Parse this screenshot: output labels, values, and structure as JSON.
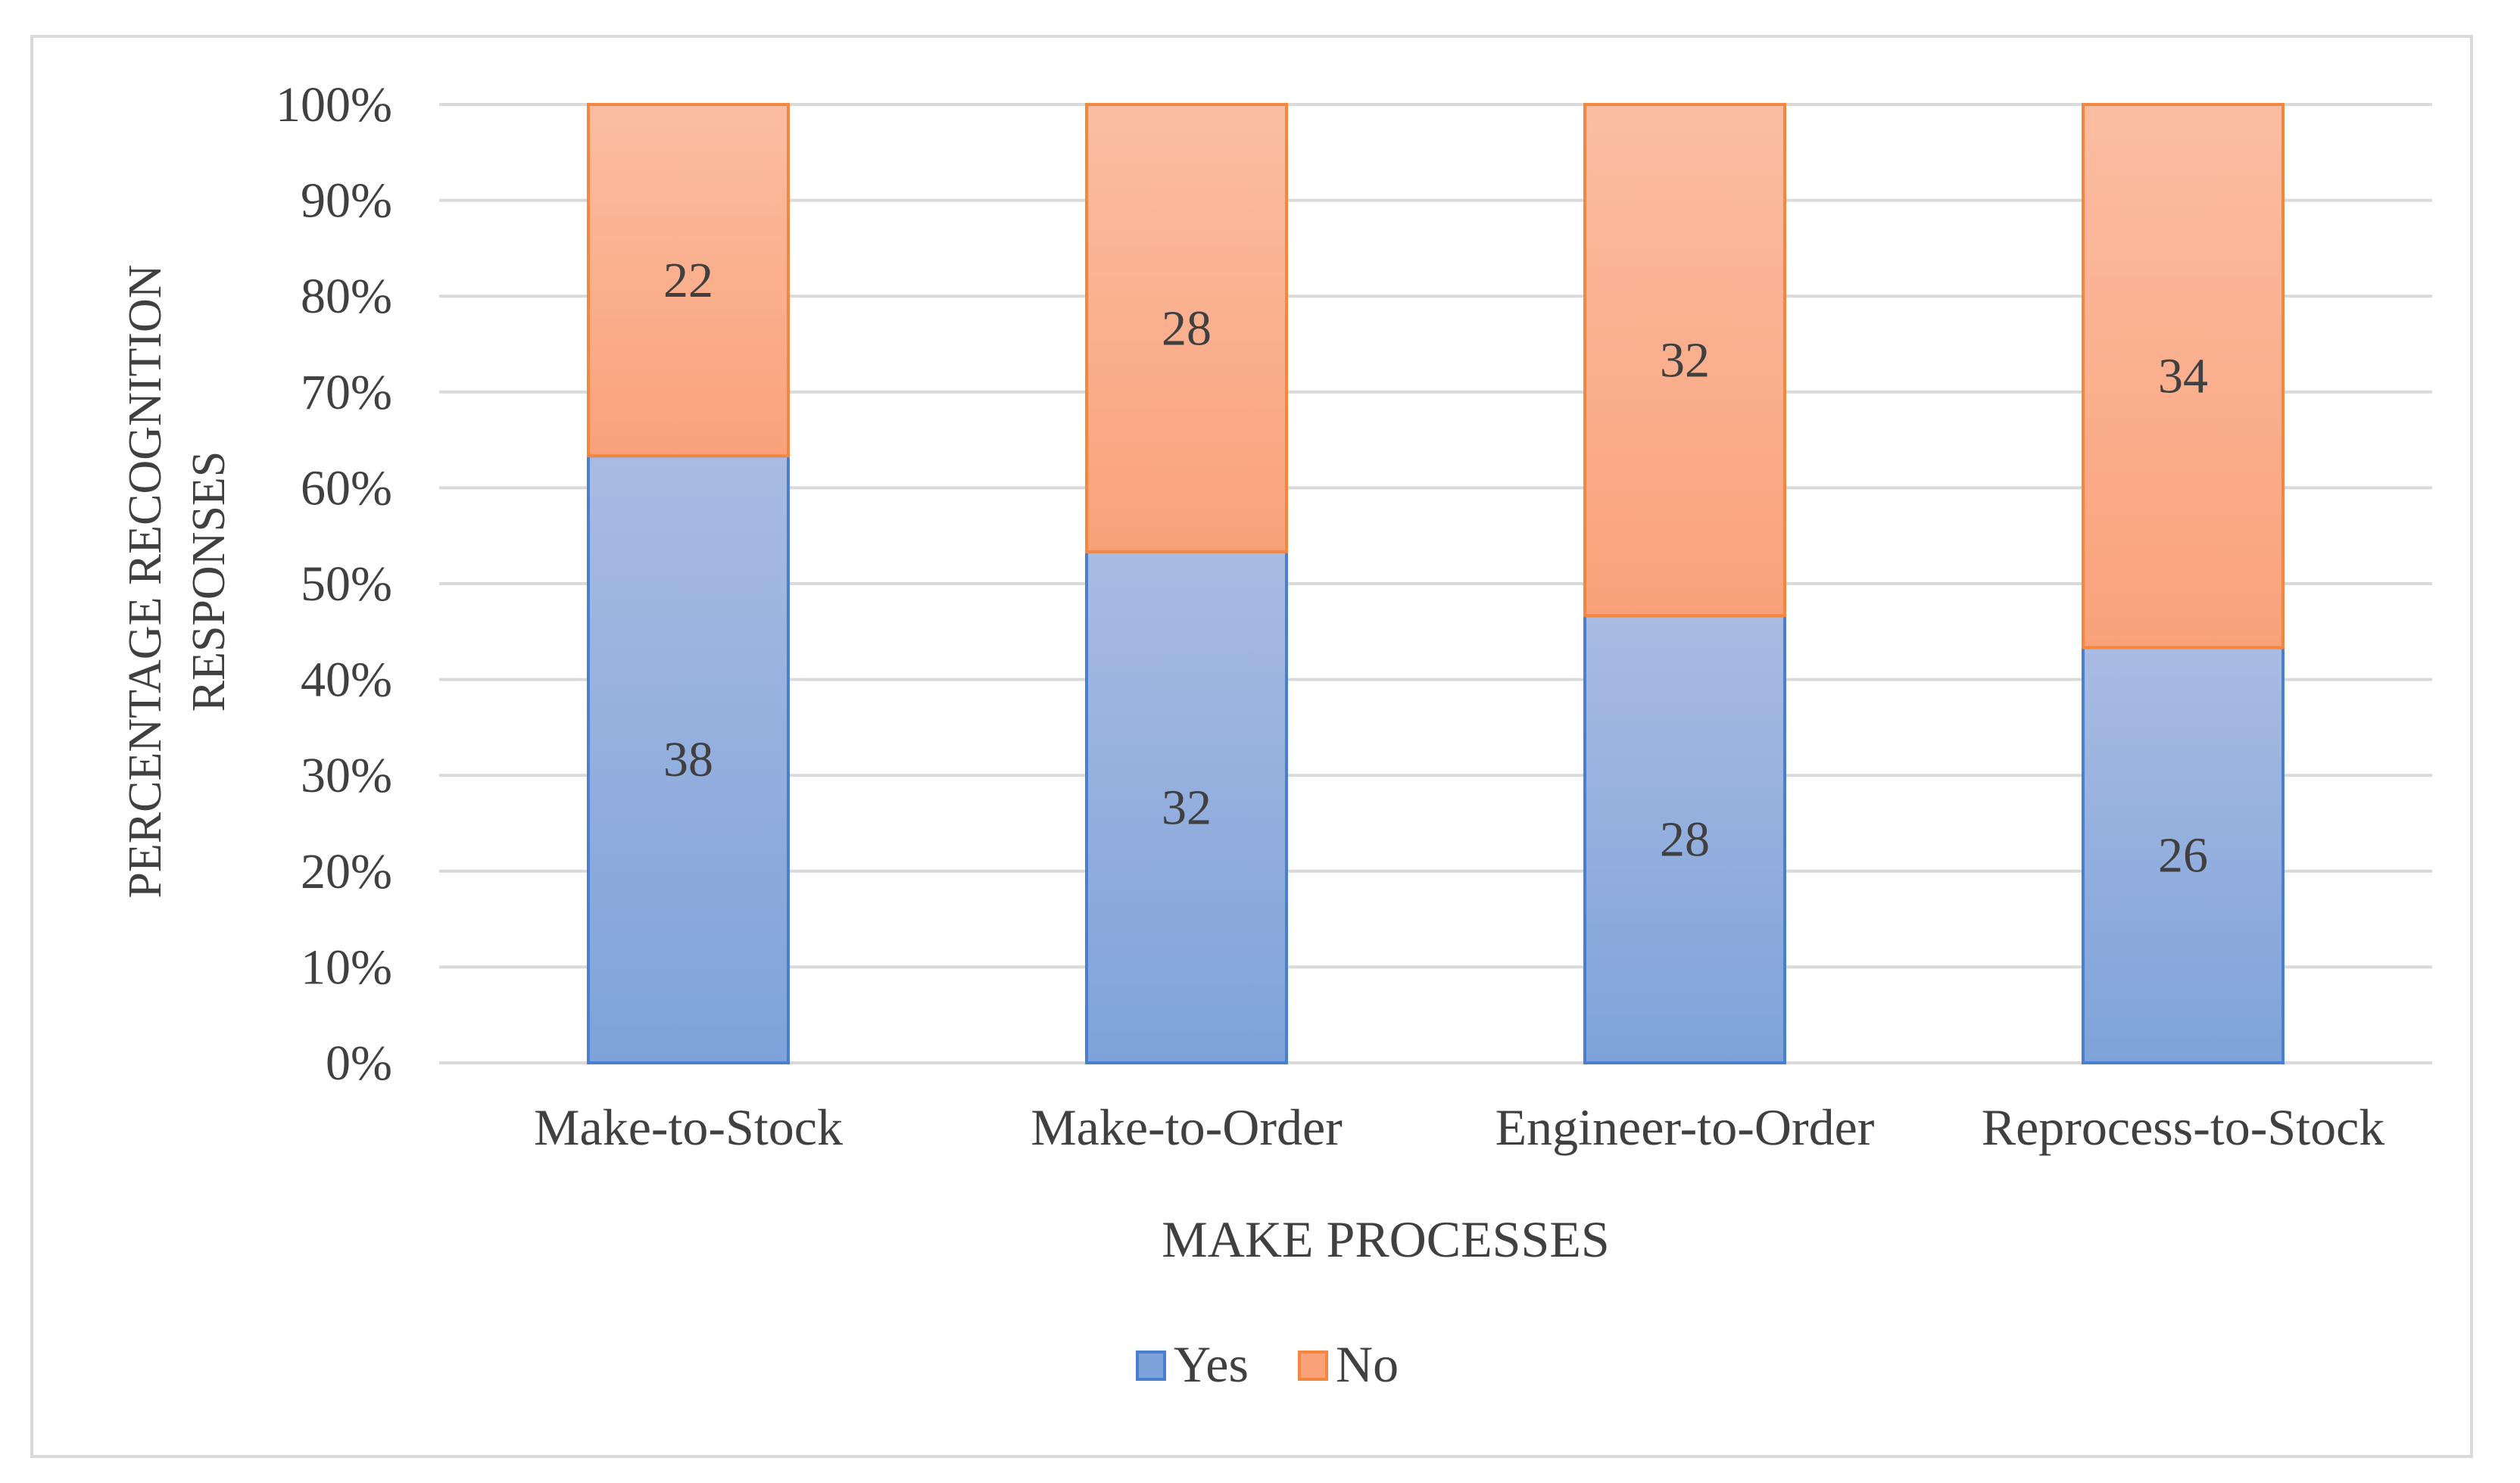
{
  "chart_data": {
    "type": "bar",
    "stacked": true,
    "percent_stacked": true,
    "title": "",
    "xlabel": "MAKE PROCESSES",
    "ylabel_lines": [
      "PERCENTAGE RECOGNITION",
      "RESPONSES"
    ],
    "ylim": [
      0,
      100
    ],
    "yticks": [
      "0%",
      "10%",
      "20%",
      "30%",
      "40%",
      "50%",
      "60%",
      "70%",
      "80%",
      "90%",
      "100%"
    ],
    "categories": [
      "Make-to-Stock",
      "Make-to-Order",
      "Engineer-to-Order",
      "Reprocess-to-Stock"
    ],
    "series": [
      {
        "name": "Yes",
        "values": [
          38,
          32,
          28,
          26
        ],
        "color": "#7ea3da",
        "color_top": "#a9bbe2",
        "edge": "#4a7fd0"
      },
      {
        "name": "No",
        "values": [
          22,
          28,
          32,
          34
        ],
        "color": "#f9a27a",
        "color_top": "#fbbda2",
        "edge": "#f4873f"
      }
    ],
    "grid": true,
    "legend": "bottom-center"
  }
}
